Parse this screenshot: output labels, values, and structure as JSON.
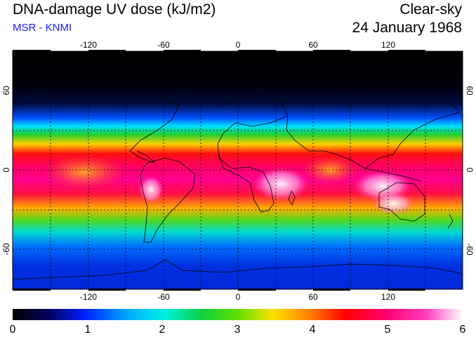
{
  "header": {
    "title": "DNA-damage UV dose (kJ/m2)",
    "credit": "MSR - KNMI",
    "sky_condition": "Clear-sky",
    "date": "24 January 1968"
  },
  "colors": {
    "credit": "#1a1aff",
    "scale": [
      "#000000",
      "#0020ff",
      "#00e6ff",
      "#2ad400",
      "#ffe000",
      "#ff0000",
      "#ff00a0",
      "#ffffff"
    ]
  },
  "map": {
    "lon_ticks": [
      "-120",
      "-60",
      "0",
      "60",
      "120"
    ],
    "lat_ticks": [
      "60",
      "0",
      "-60"
    ],
    "grid": "dashed every 30 degrees",
    "projection": "equirectangular"
  },
  "colorbar": {
    "labels": [
      "0",
      "1",
      "2",
      "3",
      "4",
      "5",
      "6"
    ],
    "min": 0,
    "max": 6
  }
}
